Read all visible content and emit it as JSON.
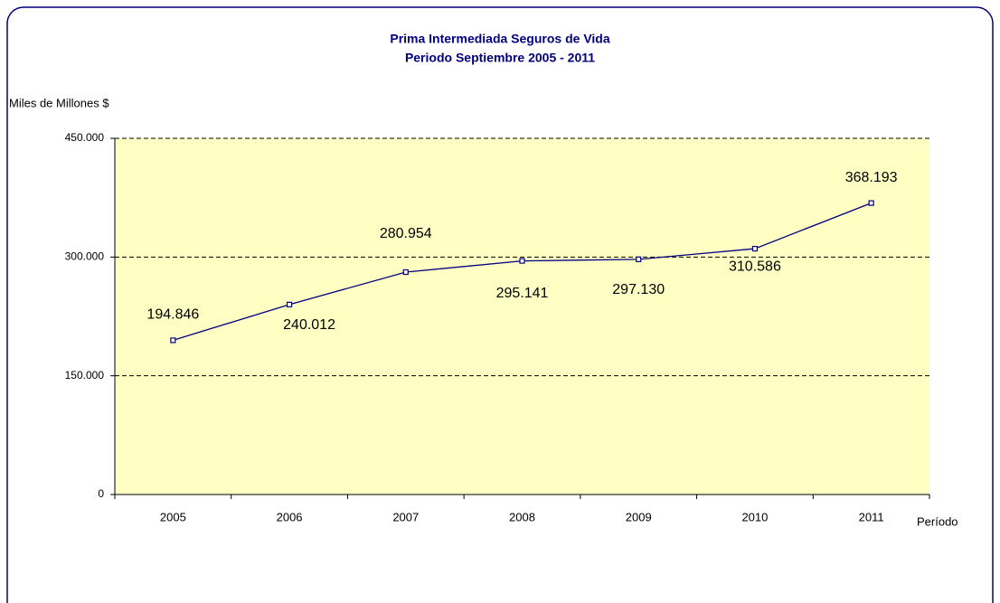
{
  "chart_data": {
    "type": "line",
    "title": "Prima Intermediada Seguros de Vida",
    "subtitle": "Periodo Septiembre 2005 - 2011",
    "y_label": "Miles de Millones $",
    "x_label": "Período",
    "categories": [
      "2005",
      "2006",
      "2007",
      "2008",
      "2009",
      "2010",
      "2011"
    ],
    "series": [
      {
        "name": "Prima Intermediada",
        "color": "#000080",
        "values": [
          194846,
          240012,
          280954,
          295141,
          297130,
          310586,
          368193
        ],
        "value_labels": [
          "194.846",
          "240.012",
          "280.954",
          "295.141",
          "297.130",
          "310.586",
          "368.193"
        ]
      }
    ],
    "ylim": [
      0,
      450000
    ],
    "yticks": [
      0,
      {
        "value": 150000,
        "label": "150.000"
      },
      {
        "value": 300000,
        "label": "300.000"
      },
      {
        "value": 450000,
        "label": "450.000"
      }
    ],
    "grid": true
  }
}
